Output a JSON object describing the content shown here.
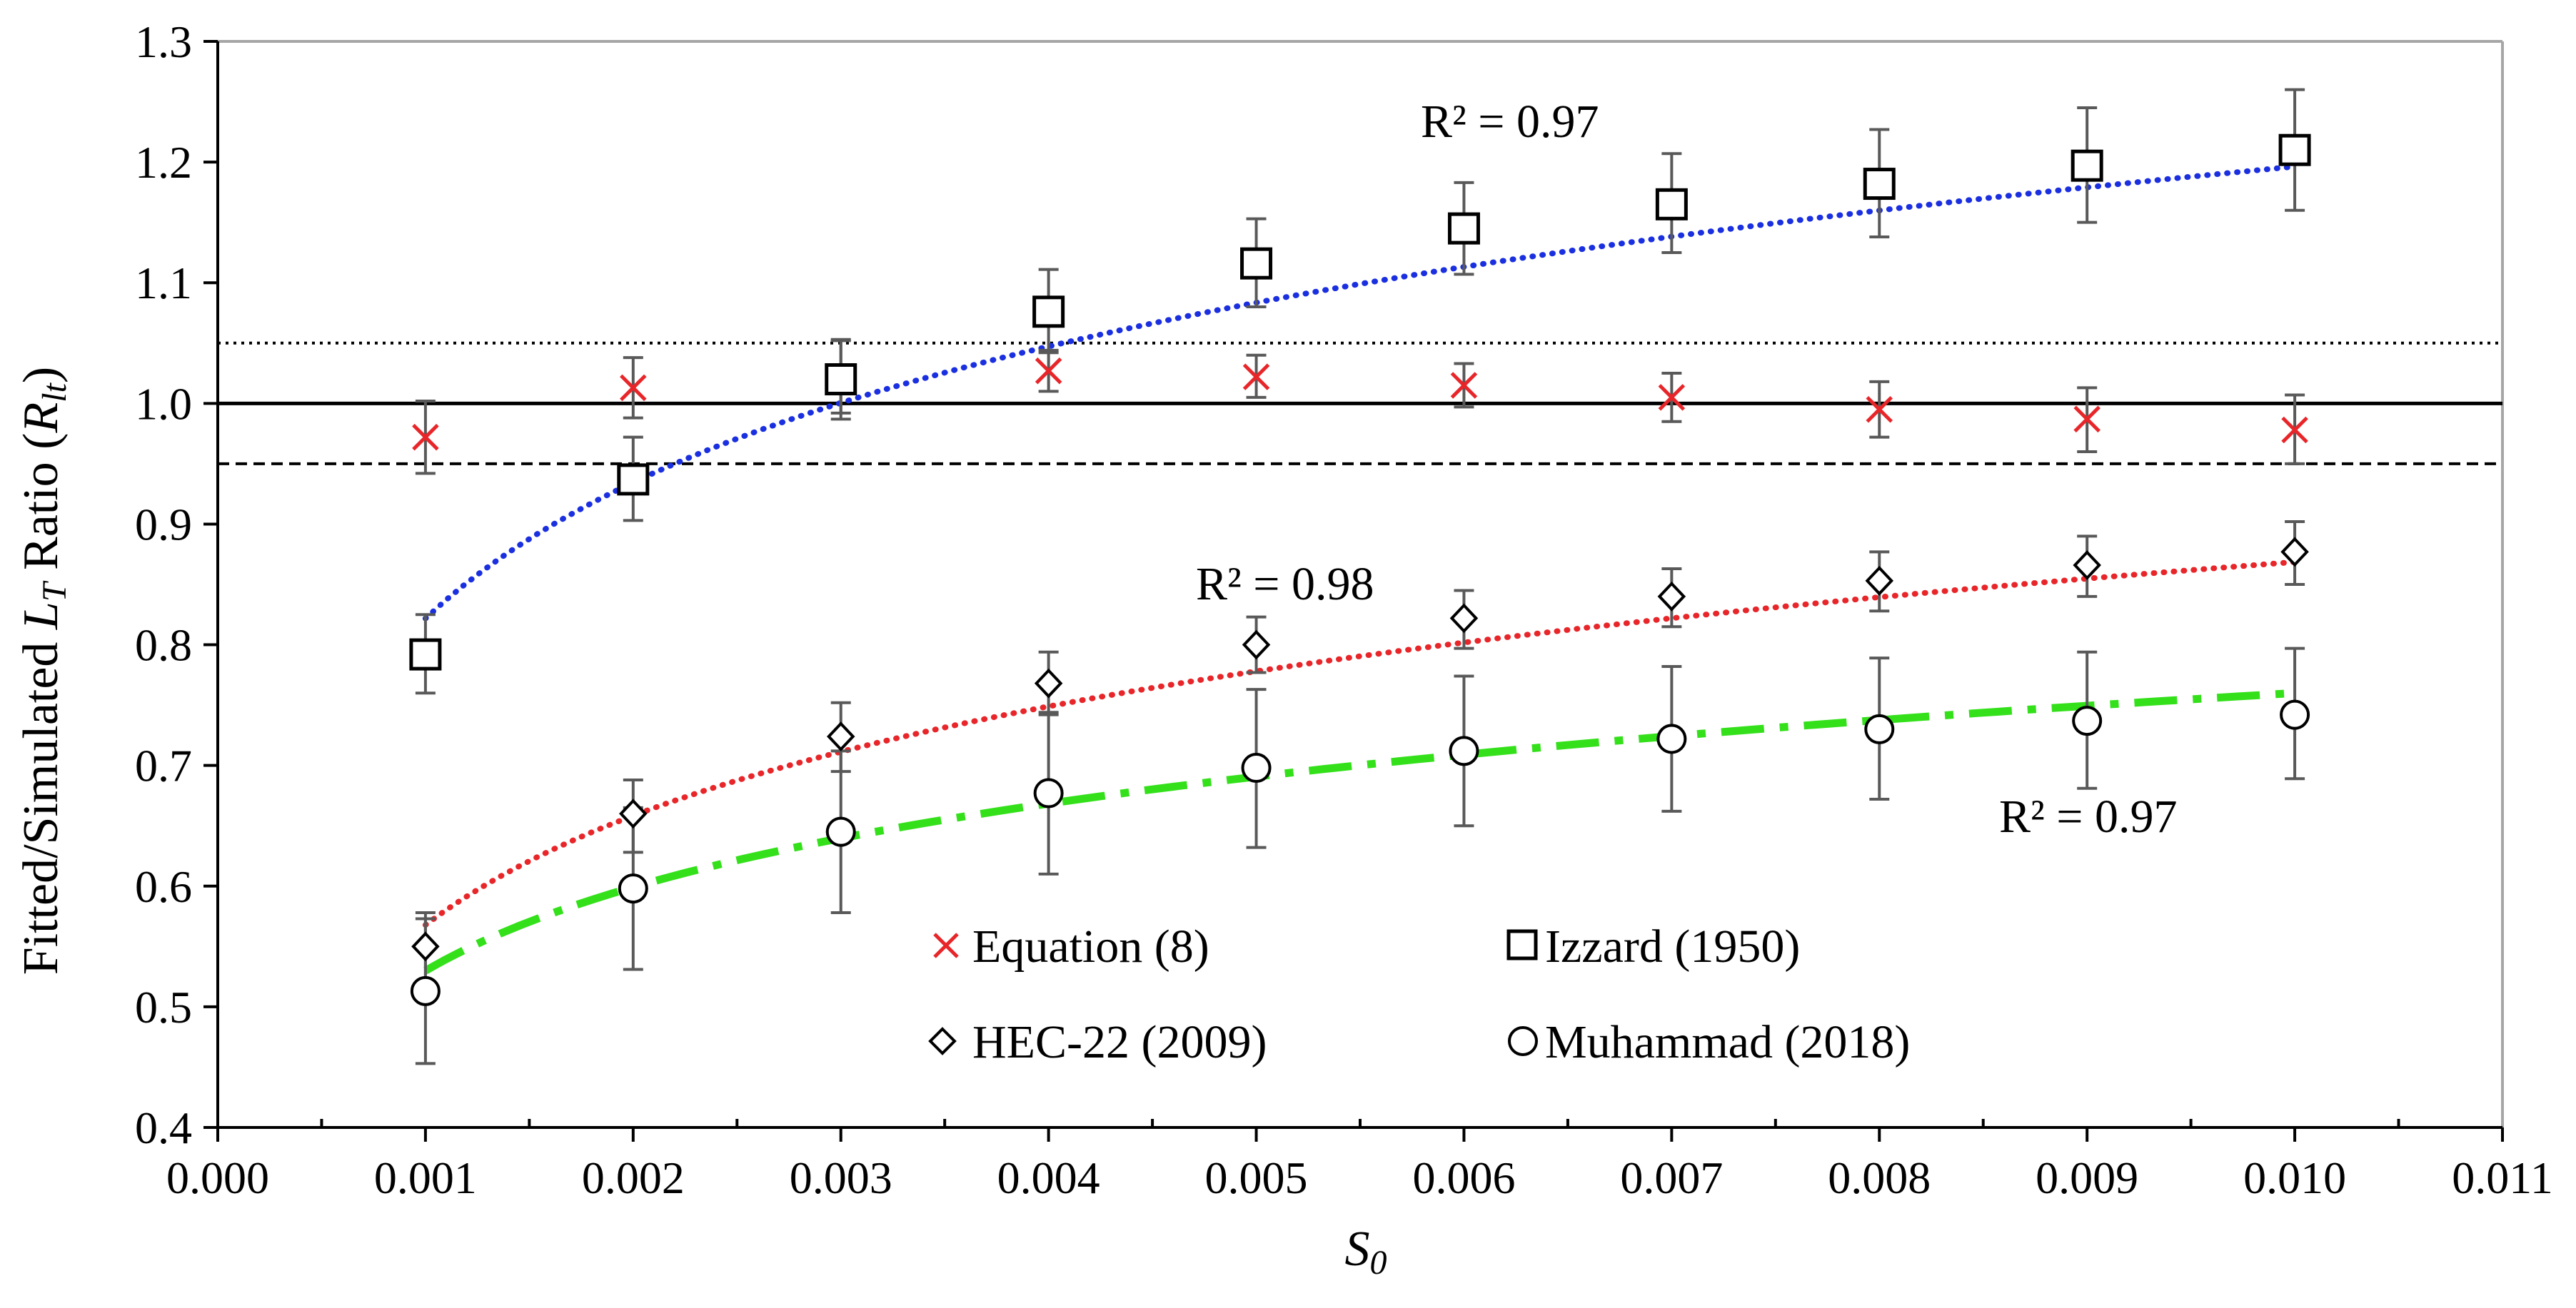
{
  "chart_data": {
    "type": "scatter",
    "xlabel_main": "S",
    "xlabel_sub": "0",
    "ylabel_prefix": "Fitted/Simulated ",
    "ylabel_var": "L",
    "ylabel_var_sub": "T",
    "ylabel_mid": " Ratio (",
    "ylabel_var2": "R",
    "ylabel_var2_sub": "lt",
    "ylabel_suffix": ")",
    "xlim": [
      0.0,
      0.011
    ],
    "ylim": [
      0.4,
      1.3
    ],
    "x_ticks": [
      0.0,
      0.001,
      0.002,
      0.003,
      0.004,
      0.005,
      0.006,
      0.007,
      0.008,
      0.009,
      0.01,
      0.011
    ],
    "x_tick_labels": [
      "0.000",
      "0.001",
      "0.002",
      "0.003",
      "0.004",
      "0.005",
      "0.006",
      "0.007",
      "0.008",
      "0.009",
      "0.010",
      "0.011"
    ],
    "y_ticks": [
      0.4,
      0.5,
      0.6,
      0.7,
      0.8,
      0.9,
      1.0,
      1.1,
      1.2,
      1.3
    ],
    "y_tick_labels": [
      "0.4",
      "0.5",
      "0.6",
      "0.7",
      "0.8",
      "0.9",
      "1.0",
      "1.1",
      "1.2",
      "1.3"
    ],
    "x": [
      0.001,
      0.002,
      0.003,
      0.004,
      0.005,
      0.006,
      0.007,
      0.008,
      0.009,
      0.01
    ],
    "series": [
      {
        "name": "Equation (8)",
        "marker": "x",
        "color": "#e8262a",
        "values": [
          0.972,
          1.013,
          1.022,
          1.027,
          1.022,
          1.015,
          1.005,
          0.995,
          0.987,
          0.978
        ],
        "err_low": [
          0.942,
          0.988,
          0.992,
          1.01,
          1.005,
          0.997,
          0.985,
          0.972,
          0.96,
          0.95
        ],
        "err_high": [
          1.002,
          1.038,
          1.052,
          1.044,
          1.04,
          1.033,
          1.025,
          1.018,
          1.013,
          1.007
        ]
      },
      {
        "name": "Izzard (1950)",
        "marker": "square",
        "color": "#000000",
        "values": [
          0.792,
          0.937,
          1.02,
          1.076,
          1.116,
          1.145,
          1.165,
          1.182,
          1.197,
          1.21
        ],
        "err_low": [
          0.76,
          0.903,
          0.987,
          1.042,
          1.08,
          1.107,
          1.125,
          1.138,
          1.15,
          1.16
        ],
        "err_high": [
          0.825,
          0.972,
          1.053,
          1.111,
          1.153,
          1.183,
          1.207,
          1.227,
          1.245,
          1.26
        ]
      },
      {
        "name": "HEC-22 (2009)",
        "marker": "diamond",
        "color": "#000000",
        "values": [
          0.55,
          0.66,
          0.724,
          0.768,
          0.8,
          0.822,
          0.84,
          0.853,
          0.866,
          0.877
        ],
        "err_low": [
          0.52,
          0.628,
          0.695,
          0.742,
          0.777,
          0.797,
          0.815,
          0.828,
          0.84,
          0.85
        ],
        "err_high": [
          0.578,
          0.688,
          0.752,
          0.794,
          0.823,
          0.845,
          0.863,
          0.877,
          0.89,
          0.902
        ]
      },
      {
        "name": "Muhammad (2018)",
        "marker": "circle",
        "color": "#000000",
        "values": [
          0.513,
          0.598,
          0.645,
          0.677,
          0.698,
          0.712,
          0.722,
          0.73,
          0.737,
          0.742
        ],
        "err_low": [
          0.453,
          0.531,
          0.578,
          0.61,
          0.632,
          0.65,
          0.662,
          0.672,
          0.681,
          0.689
        ],
        "err_high": [
          0.573,
          0.665,
          0.712,
          0.744,
          0.763,
          0.774,
          0.782,
          0.789,
          0.794,
          0.797
        ]
      }
    ],
    "trendlines": [
      {
        "name": "Izzard trend",
        "color": "#1a2fe0",
        "style": "dotted",
        "a": 1.945,
        "b": 0.1626,
        "r2_label": "R² = 0.97"
      },
      {
        "name": "HEC-22 trend",
        "color": "#e8262a",
        "style": "dotted",
        "a": 1.47,
        "b": 0.1306,
        "r2_label": "R² = 0.98"
      },
      {
        "name": "Muhammad trend",
        "color": "#33e01a",
        "style": "dash-dot",
        "a": 1.22,
        "b": 0.0999,
        "r2_label": "R² = 0.97"
      }
    ],
    "reference_lines": [
      {
        "y": 1.05,
        "style": "dotted"
      },
      {
        "y": 1.0,
        "style": "solid"
      },
      {
        "y": 0.95,
        "style": "dashed"
      }
    ]
  }
}
